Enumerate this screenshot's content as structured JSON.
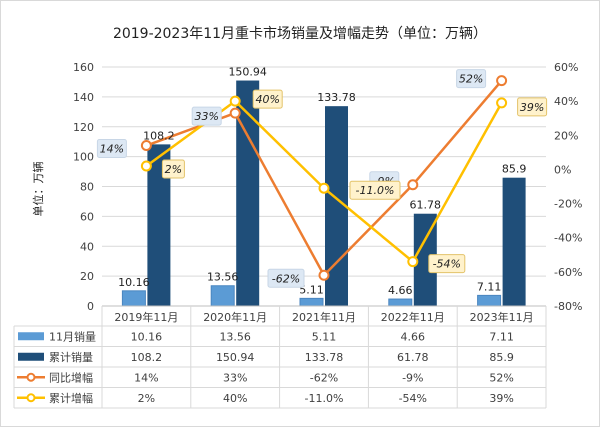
{
  "chart_data": {
    "type": "bar",
    "title": "2019-2023年11月重卡市场销量及增幅走势（单位：万辆）",
    "ylabel": "单位：万辆",
    "categories": [
      "2019年11月",
      "2020年11月",
      "2021年11月",
      "2022年11月",
      "2023年11月"
    ],
    "ylim": [
      0,
      160
    ],
    "y_ticks": [
      "0",
      "20",
      "40",
      "60",
      "80",
      "100",
      "120",
      "140",
      "160"
    ],
    "y2lim": [
      -80,
      60
    ],
    "y2_ticks": [
      "-80%",
      "-60%",
      "-40%",
      "-20%",
      "0%",
      "20%",
      "40%",
      "60%"
    ],
    "grid": true,
    "legend_placement": "bottom-table",
    "series": [
      {
        "name": "11月销量",
        "kind": "bar",
        "color": "#5B9BD5",
        "values": [
          10.16,
          13.56,
          5.11,
          4.66,
          7.11
        ],
        "labels": [
          "10.16",
          "13.56",
          "5.11",
          "4.66",
          "7.11"
        ],
        "table": [
          "10.16",
          "13.56",
          "5.11",
          "4.66",
          "7.11"
        ]
      },
      {
        "name": "累计销量",
        "kind": "bar",
        "color": "#1F4E79",
        "values": [
          108.2,
          150.94,
          133.78,
          61.78,
          85.9
        ],
        "labels": [
          "108.2",
          "150.94",
          "133.78",
          "61.78",
          "85.9"
        ],
        "table": [
          "108.2",
          "150.94",
          "133.78",
          "61.78",
          "85.9"
        ]
      },
      {
        "name": "同比增幅",
        "kind": "line",
        "axis": "right",
        "color": "#ED7D31",
        "values": [
          14,
          33,
          -62,
          -9,
          52
        ],
        "labels": [
          "14%",
          "33%",
          "-62%",
          "-9%",
          "52%"
        ],
        "table": [
          "14%",
          "33%",
          "-62%",
          "-9%",
          "52%"
        ]
      },
      {
        "name": "累计增幅",
        "kind": "line",
        "axis": "right",
        "color": "#FFC000",
        "values": [
          2,
          40,
          -11,
          -54,
          39
        ],
        "labels": [
          "2%",
          "40%",
          "-11.0%",
          "-54%",
          "39%"
        ],
        "table": [
          "2%",
          "40%",
          "-11.0%",
          "-54%",
          "39%"
        ]
      }
    ]
  }
}
